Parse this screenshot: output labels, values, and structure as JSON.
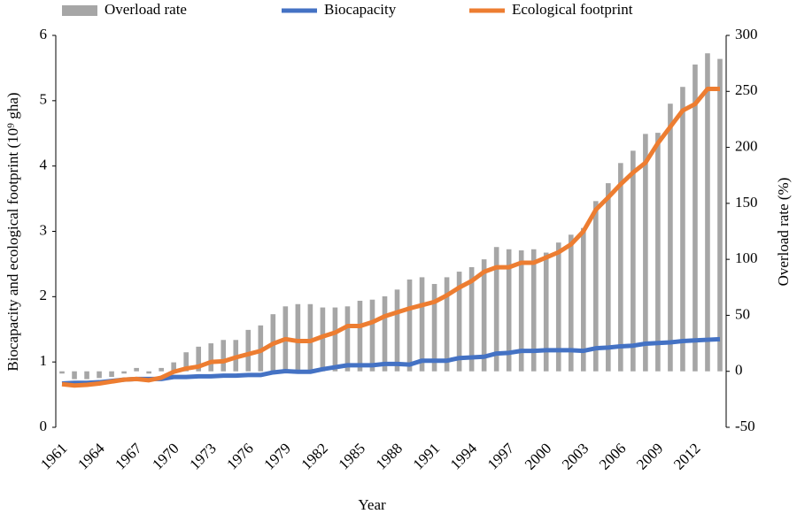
{
  "chart_data": {
    "type": "bar-line",
    "x_label": "Year",
    "y_label": "Biocapacity and ecological footprint (10⁹ gha)",
    "y2_label": "Overload rate (%)",
    "categories": [
      "1961",
      null,
      null,
      "1964",
      null,
      null,
      "1967",
      null,
      null,
      "1970",
      null,
      null,
      "1973",
      null,
      null,
      "1976",
      null,
      null,
      "1979",
      null,
      null,
      "1982",
      null,
      null,
      "1985",
      null,
      null,
      "1988",
      null,
      null,
      "1991",
      null,
      null,
      "1994",
      null,
      null,
      "1997",
      null,
      null,
      "2000",
      null,
      null,
      "2003",
      null,
      null,
      "2006",
      null,
      null,
      "2009",
      null,
      null,
      "2012",
      null,
      null
    ],
    "series": [
      {
        "name": "Overload rate",
        "kind": "bar",
        "axis": "y2",
        "color": "#a6a6a6",
        "values": [
          -2,
          -7,
          -7,
          -6,
          -5,
          -2,
          3,
          -2,
          3,
          8,
          17,
          22,
          25,
          28,
          28,
          37,
          41,
          51,
          58,
          60,
          60,
          57,
          57,
          58,
          63,
          64,
          67,
          73,
          82,
          84,
          78,
          84,
          89,
          93,
          100,
          111,
          109,
          108,
          109,
          106,
          115,
          122,
          128,
          152,
          168,
          186,
          197,
          212,
          213,
          239,
          254,
          274,
          284,
          279
        ]
      },
      {
        "name": "Biocapacity",
        "kind": "line",
        "axis": "y",
        "color": "#4472c4",
        "values": [
          0.67,
          0.68,
          0.68,
          0.69,
          0.71,
          0.73,
          0.74,
          0.74,
          0.74,
          0.77,
          0.77,
          0.78,
          0.78,
          0.79,
          0.79,
          0.8,
          0.8,
          0.84,
          0.86,
          0.85,
          0.85,
          0.89,
          0.92,
          0.95,
          0.95,
          0.95,
          0.97,
          0.97,
          0.96,
          1.02,
          1.02,
          1.02,
          1.06,
          1.07,
          1.08,
          1.13,
          1.14,
          1.17,
          1.17,
          1.18,
          1.18,
          1.18,
          1.17,
          1.21,
          1.22,
          1.24,
          1.25,
          1.28,
          1.29,
          1.3,
          1.32,
          1.33,
          1.34,
          1.35
        ]
      },
      {
        "name": "Ecological footprint",
        "kind": "line",
        "axis": "y",
        "color": "#ed7d31",
        "values": [
          0.66,
          0.64,
          0.65,
          0.67,
          0.7,
          0.73,
          0.74,
          0.72,
          0.76,
          0.85,
          0.9,
          0.93,
          1.0,
          1.01,
          1.07,
          1.12,
          1.17,
          1.28,
          1.35,
          1.32,
          1.32,
          1.39,
          1.45,
          1.55,
          1.55,
          1.61,
          1.7,
          1.76,
          1.82,
          1.87,
          1.92,
          2.02,
          2.14,
          2.24,
          2.38,
          2.45,
          2.45,
          2.52,
          2.52,
          2.6,
          2.68,
          2.8,
          3.0,
          3.33,
          3.52,
          3.72,
          3.9,
          4.05,
          4.35,
          4.6,
          4.85,
          4.95,
          5.18,
          5.18
        ]
      }
    ],
    "ylim": [
      0,
      6
    ],
    "yticks": [
      0,
      1,
      2,
      3,
      4,
      5,
      6
    ],
    "y2lim": [
      -50,
      300
    ],
    "y2ticks": [
      -50,
      0,
      50,
      100,
      150,
      200,
      250,
      300
    ],
    "legend": "top"
  }
}
